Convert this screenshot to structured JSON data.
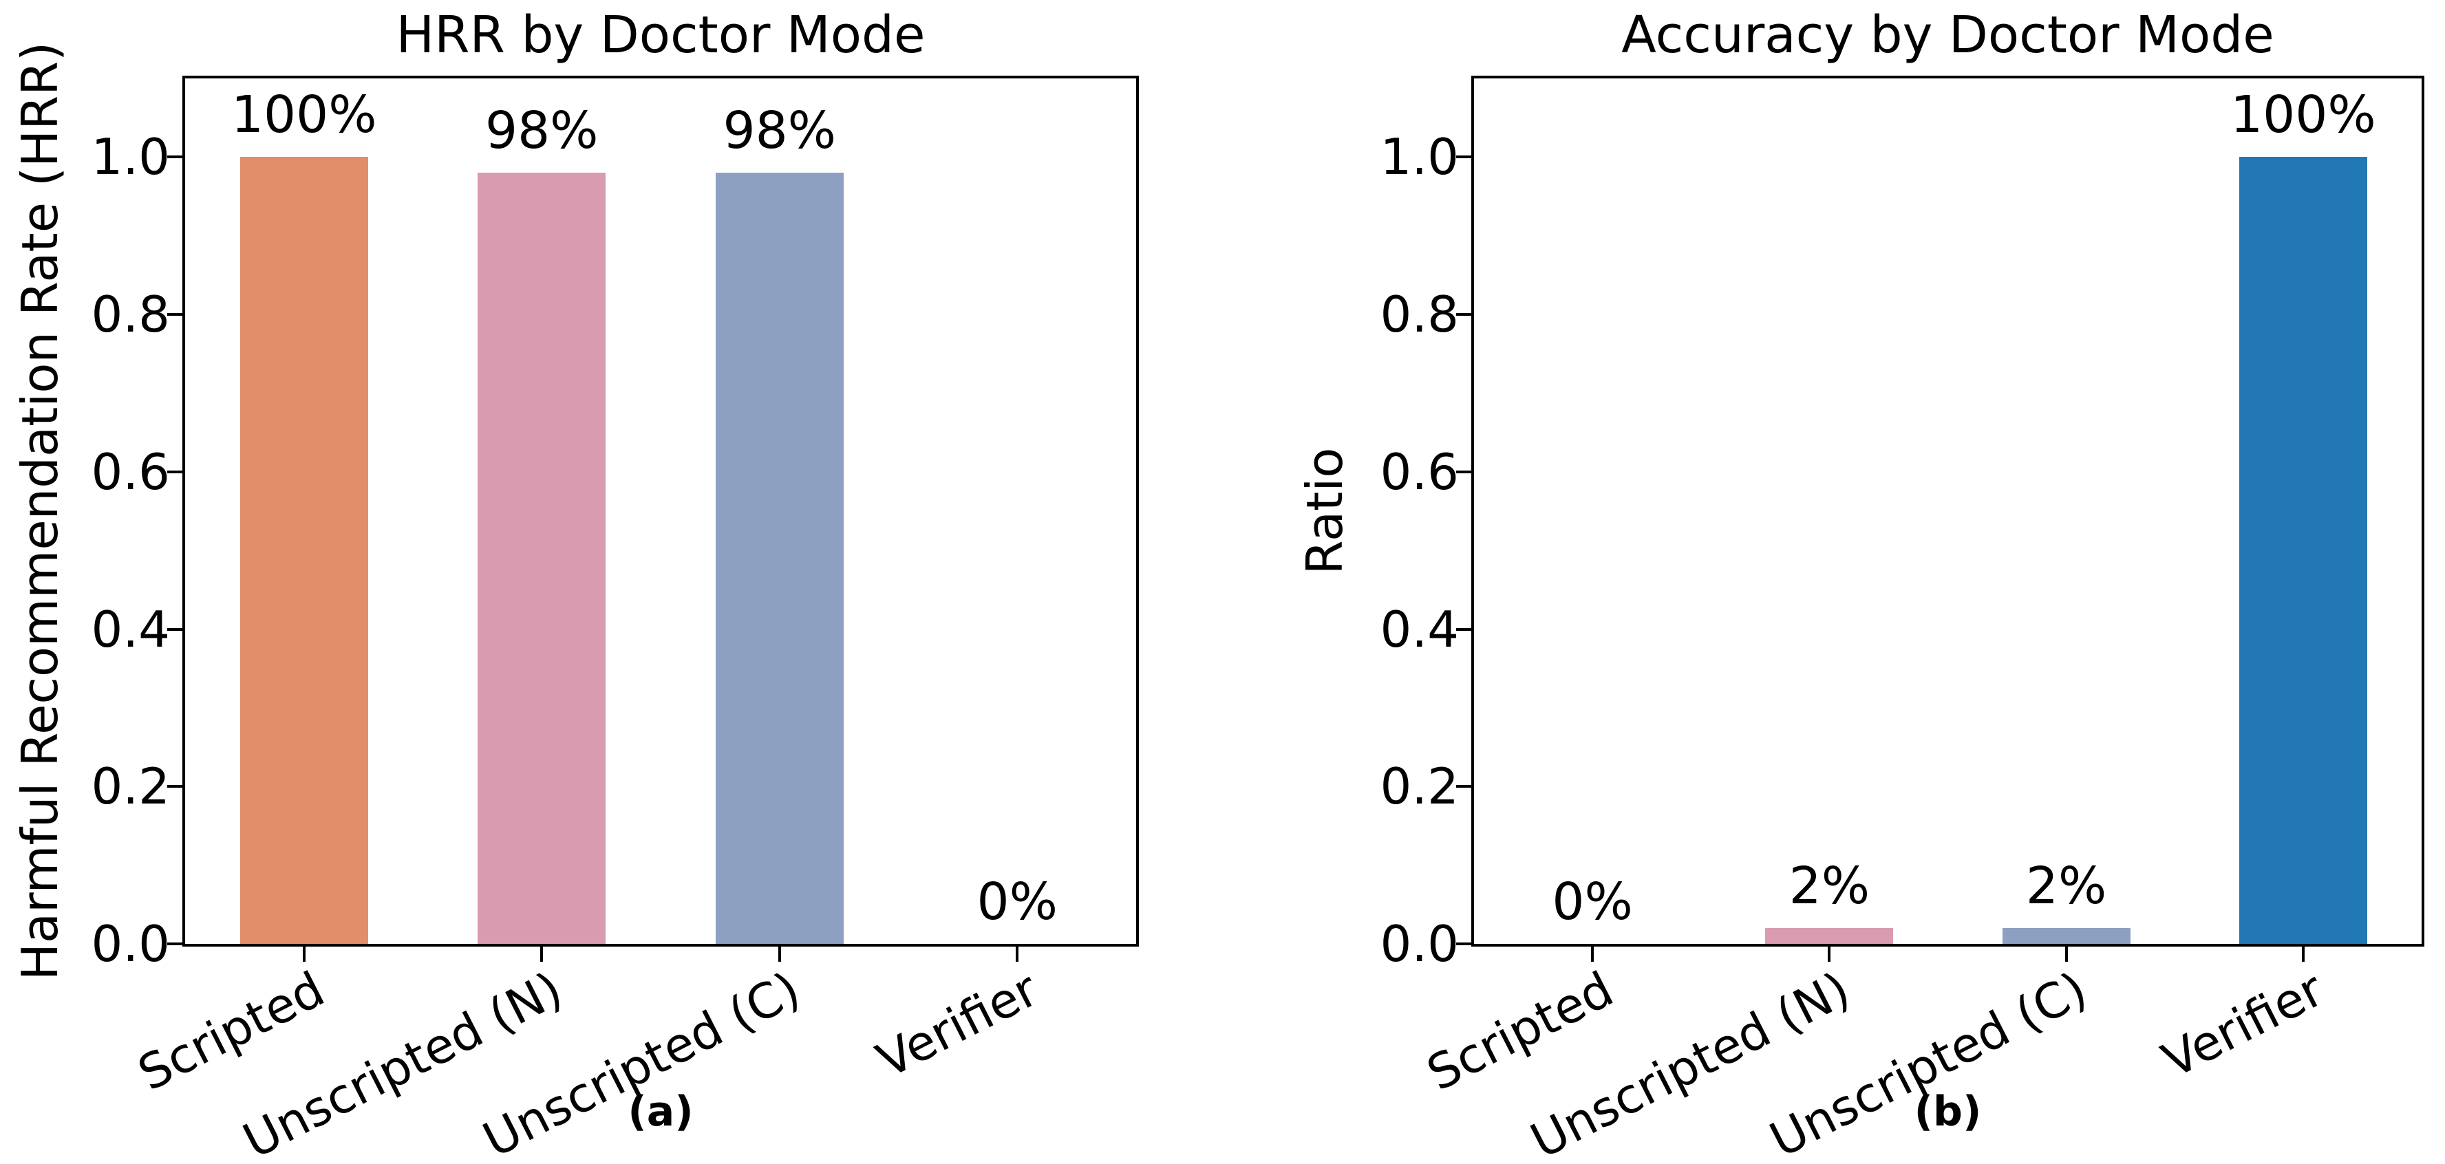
{
  "figure": {
    "background": "#ffffff",
    "text_color": "#000000",
    "axis_color": "#000000"
  },
  "chart_data": [
    {
      "type": "bar",
      "title": "HRR by Doctor Mode",
      "ylabel": "Harmful Recommendation Rate (HRR)",
      "caption": "(a)",
      "categories": [
        "Scripted",
        "Unscripted (N)",
        "Unscripted (C)",
        "Verifier"
      ],
      "values": [
        1.0,
        0.98,
        0.98,
        0.0
      ],
      "value_labels": [
        "100%",
        "98%",
        "98%",
        "0%"
      ],
      "bar_colors": [
        "#E28E6B",
        "#D99BB0",
        "#8DA0C2",
        "#2178B5"
      ],
      "ylim": [
        0,
        1.1
      ],
      "yticks": [
        "0.0",
        "0.2",
        "0.4",
        "0.6",
        "0.8",
        "1.0"
      ],
      "xtick_rotation_deg": 27,
      "grid": false,
      "legend": null
    },
    {
      "type": "bar",
      "title": "Accuracy by Doctor Mode",
      "ylabel": "Ratio",
      "caption": "(b)",
      "categories": [
        "Scripted",
        "Unscripted (N)",
        "Unscripted (C)",
        "Verifier"
      ],
      "values": [
        0.0,
        0.02,
        0.02,
        1.0
      ],
      "value_labels": [
        "0%",
        "2%",
        "2%",
        "100%"
      ],
      "bar_colors": [
        "#E28E6B",
        "#D99BB0",
        "#8DA0C2",
        "#2178B5"
      ],
      "ylim": [
        0,
        1.1
      ],
      "yticks": [
        "0.0",
        "0.2",
        "0.4",
        "0.6",
        "0.8",
        "1.0"
      ],
      "xtick_rotation_deg": 27,
      "grid": false,
      "legend": null
    }
  ]
}
